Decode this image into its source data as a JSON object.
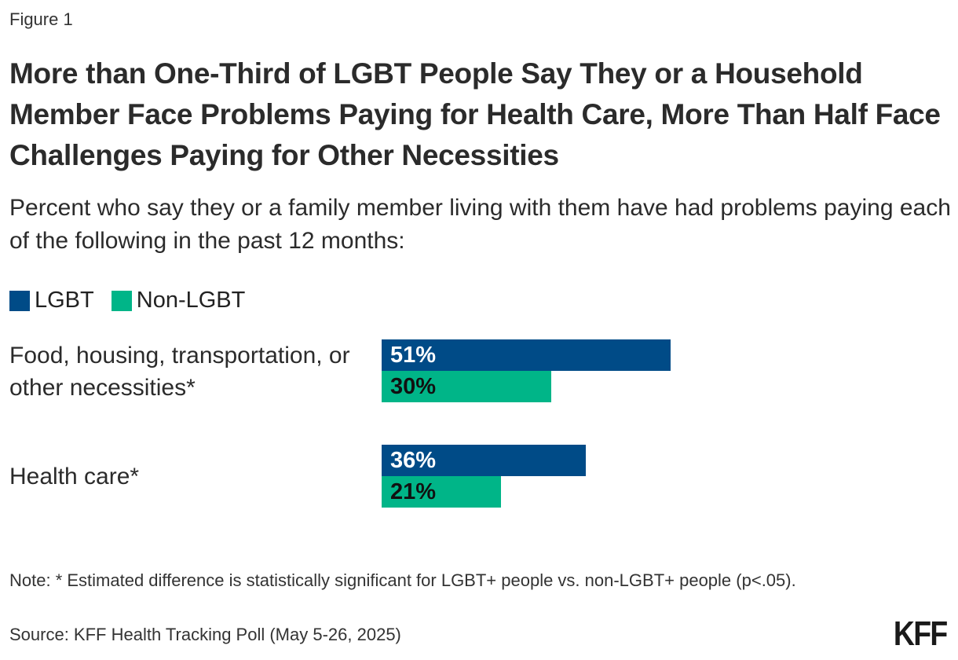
{
  "figure_label": "Figure 1",
  "colors": {
    "LGBT": "#004b87",
    "Non-LGBT": "#00b588"
  },
  "chart_data": {
    "type": "bar",
    "orientation": "horizontal",
    "title": "More than One-Third of LGBT People Say They or a Household Member Face Problems Paying for Health Care, More Than Half Face Challenges Paying for Other Necessities",
    "subtitle": "Percent who say they or a family member living with them have had problems paying each of the following in the past 12 months:",
    "categories": [
      "Food, housing, transportation, or other necessities*",
      "Health care*"
    ],
    "series": [
      {
        "name": "LGBT",
        "values": [
          51,
          36
        ],
        "labels": [
          "51%",
          "36%"
        ]
      },
      {
        "name": "Non-LGBT",
        "values": [
          30,
          21
        ],
        "labels": [
          "30%",
          "21%"
        ]
      }
    ],
    "xlim": [
      0,
      100
    ],
    "grid": false,
    "legend": "top-left"
  },
  "note": "Note: * Estimated difference is statistically significant for LGBT+ people vs. non-LGBT+ people (p<.05).",
  "source": "Source: KFF Health Tracking Poll (May 5-26, 2025)",
  "logo": "KFF"
}
